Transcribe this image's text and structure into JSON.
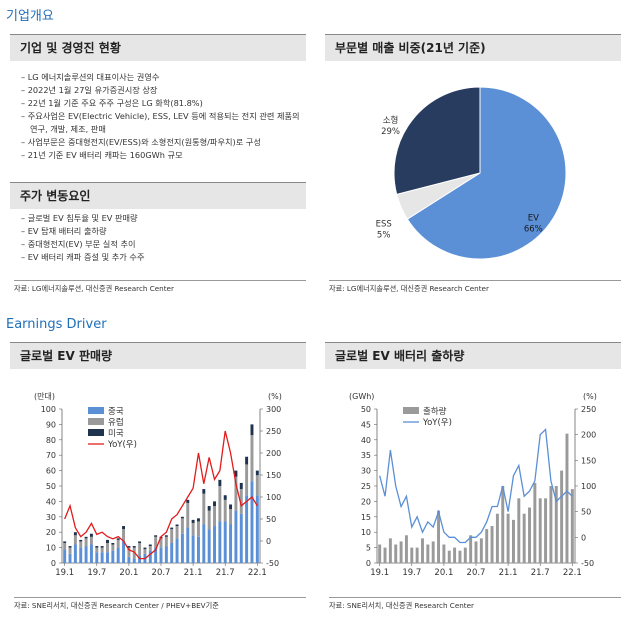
{
  "section1_title": "기업개요",
  "overview": {
    "header": "기업 및 경영진 현황",
    "bullets": [
      "LG 에너지솔루션의 대표이사는 권영수",
      "2022년 1월 27일 유가증권시장 상장",
      "22년 1월 기준 주요 주주 구성은 LG 화학(81.8%)",
      "주요사업은 EV(Electric Vehicle), ESS, LEV 등에 적용되는 전지 관련 제품의 연구, 개발, 제조, 판매",
      "사업부문은 중대형전지(EV/ESS)와 소형전지(원통형/파우치)로 구성",
      "21년 기준 EV 배터리 캐파는 160GWh 규모"
    ],
    "header2": "주가 변동요인",
    "bullets2": [
      "글로벌 EV 침투율 및 EV 판매량",
      "EV 탑재 배터리 출하량",
      "중대형전지(EV) 부문 실적 추이",
      "EV 배터리 캐파 증설 및 추가 수주"
    ],
    "source": "자료: LG에너지솔루션, 대신증권 Research Center"
  },
  "pie": {
    "header": "부문별 매출 비중(21년 기준)",
    "source": "자료: LG에너지솔루션, 대신증권 Research Center",
    "colors": {
      "EV": "#5b8fd6",
      "ESS": "#e6e6e6",
      "소형": "#283c5f"
    }
  },
  "section2_title": "Earnings Driver",
  "ev_sales": {
    "header": "글로벌 EV 판매량",
    "source": "자료: SNE리서치, 대신증권 Research Center / PHEV+BEV기준",
    "unit_left": "(만대)",
    "unit_right": "(%)",
    "colors": {
      "중국": "#5b8fd6",
      "유럽": "#9a9a9a",
      "미국": "#1f3350",
      "YoY": "#e21b1b"
    }
  },
  "ev_battery": {
    "header": "글로벌 EV 배터리 출하량",
    "source": "자료: SNE리서치, 대신증권 Research Center",
    "unit_left": "(GWh)",
    "unit_right": "(%)",
    "colors": {
      "bar": "#9a9a9a",
      "line": "#5b8fd6"
    }
  },
  "chart_data": [
    {
      "type": "pie",
      "labels": [
        "EV",
        "ESS",
        "소형"
      ],
      "values": [
        66,
        5,
        29
      ],
      "value_labels": [
        "66%",
        "5%",
        "29%"
      ]
    },
    {
      "type": "bar",
      "stacked": true,
      "x": [
        "19.1",
        "19.2",
        "19.3",
        "19.4",
        "19.5",
        "19.6",
        "19.7",
        "19.8",
        "19.9",
        "19.10",
        "19.11",
        "19.12",
        "20.1",
        "20.2",
        "20.3",
        "20.4",
        "20.5",
        "20.6",
        "20.7",
        "20.8",
        "20.9",
        "20.10",
        "20.11",
        "20.12",
        "21.1",
        "21.2",
        "21.3",
        "21.4",
        "21.5",
        "21.6",
        "21.7",
        "21.8",
        "21.9",
        "21.10",
        "21.11",
        "21.12",
        "22.1"
      ],
      "x_tick_labels": [
        "19.1",
        "19.7",
        "20.1",
        "20.7",
        "21.1",
        "21.7",
        "22.1"
      ],
      "series": [
        {
          "name": "중국",
          "axis": "left",
          "values": [
            9,
            6,
            12,
            10,
            11,
            12,
            7,
            7,
            7,
            8,
            10,
            14,
            4,
            3,
            5,
            6,
            8,
            10,
            10,
            11,
            13,
            16,
            19,
            23,
            18,
            17,
            25,
            22,
            24,
            27,
            27,
            25,
            34,
            32,
            44,
            53,
            44
          ]
        },
        {
          "name": "유럽",
          "axis": "left",
          "values": [
            4,
            4,
            6,
            4,
            5,
            5,
            3,
            3,
            6,
            4,
            5,
            8,
            6,
            7,
            8,
            3,
            3,
            7,
            6,
            6,
            9,
            8,
            10,
            16,
            8,
            10,
            20,
            12,
            13,
            23,
            14,
            10,
            22,
            16,
            20,
            30,
            13
          ]
        },
        {
          "name": "미국",
          "axis": "left",
          "values": [
            1,
            1,
            2,
            1,
            1,
            2,
            1,
            1,
            2,
            1,
            1,
            2,
            1,
            1,
            1,
            1,
            1,
            1,
            1,
            1,
            1,
            1,
            1,
            2,
            2,
            2,
            3,
            3,
            3,
            4,
            3,
            3,
            4,
            4,
            5,
            7,
            3
          ]
        },
        {
          "name": "YoY(우)",
          "axis": "right",
          "type": "line",
          "values": [
            50,
            80,
            30,
            10,
            20,
            40,
            15,
            20,
            10,
            5,
            10,
            0,
            -20,
            -25,
            -40,
            -40,
            -30,
            -20,
            10,
            20,
            50,
            60,
            80,
            100,
            120,
            200,
            130,
            190,
            140,
            160,
            250,
            200,
            130,
            80,
            90,
            100,
            80
          ]
        }
      ],
      "legend": [
        "중국",
        "유럽",
        "미국",
        "YoY(우)"
      ],
      "ylim_left": [
        0,
        100
      ],
      "yticks_left": [
        0,
        10,
        20,
        30,
        40,
        50,
        60,
        70,
        80,
        90,
        100
      ],
      "ylim_right": [
        -50,
        300
      ],
      "yticks_right": [
        -50,
        0,
        50,
        100,
        150,
        200,
        250,
        300
      ]
    },
    {
      "type": "bar",
      "x": [
        "19.1",
        "19.2",
        "19.3",
        "19.4",
        "19.5",
        "19.6",
        "19.7",
        "19.8",
        "19.9",
        "19.10",
        "19.11",
        "19.12",
        "20.1",
        "20.2",
        "20.3",
        "20.4",
        "20.5",
        "20.6",
        "20.7",
        "20.8",
        "20.9",
        "20.10",
        "20.11",
        "20.12",
        "21.1",
        "21.2",
        "21.3",
        "21.4",
        "21.5",
        "21.6",
        "21.7",
        "21.8",
        "21.9",
        "21.10",
        "21.11",
        "21.12",
        "22.1"
      ],
      "x_tick_labels": [
        "19.1",
        "19.7",
        "20.1",
        "20.7",
        "21.1",
        "21.7",
        "22.1"
      ],
      "series": [
        {
          "name": "출하량",
          "axis": "left",
          "values": [
            6,
            5,
            8,
            6,
            7,
            9,
            5,
            5,
            8,
            6,
            7,
            17,
            6,
            4,
            5,
            4,
            5,
            9,
            7,
            8,
            11,
            12,
            16,
            25,
            16,
            14,
            21,
            16,
            18,
            26,
            21,
            21,
            25,
            25,
            30,
            42,
            24
          ]
        },
        {
          "name": "YoY(우)",
          "axis": "right",
          "type": "line",
          "values": [
            120,
            80,
            170,
            100,
            60,
            80,
            20,
            40,
            10,
            30,
            20,
            50,
            10,
            0,
            0,
            -10,
            -10,
            0,
            0,
            10,
            30,
            60,
            60,
            100,
            50,
            120,
            140,
            80,
            90,
            110,
            200,
            210,
            110,
            70,
            80,
            90,
            80
          ]
        }
      ],
      "legend": [
        "출하량",
        "YoY(우)"
      ],
      "ylim_left": [
        0,
        50
      ],
      "yticks_left": [
        0,
        5,
        10,
        15,
        20,
        25,
        30,
        35,
        40,
        45,
        50
      ],
      "ylim_right": [
        -50,
        250
      ],
      "yticks_right": [
        -50,
        0,
        50,
        100,
        150,
        200,
        250
      ]
    }
  ]
}
